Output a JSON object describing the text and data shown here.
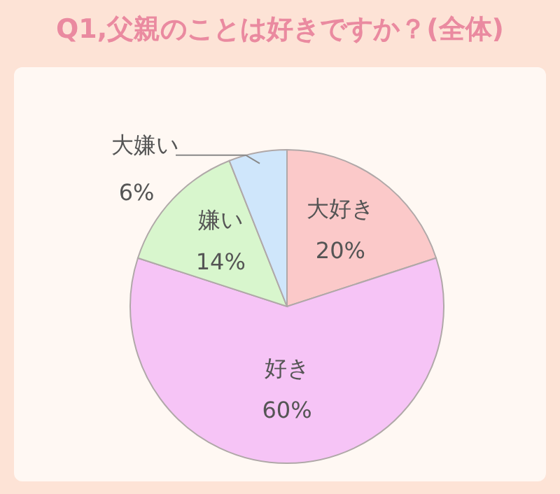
{
  "chart_data": {
    "type": "pie",
    "title": "Q1,父親のことは好きですか？(全体)",
    "categories": [
      "大好き",
      "好き",
      "嫌い",
      "大嫌い"
    ],
    "values": [
      20,
      60,
      14,
      6
    ],
    "value_labels": [
      "20%",
      "60%",
      "14%",
      "6%"
    ],
    "colors": [
      "#fbc9c9",
      "#f6c4f6",
      "#d8f6cd",
      "#cfe6fb"
    ],
    "legend": false
  }
}
